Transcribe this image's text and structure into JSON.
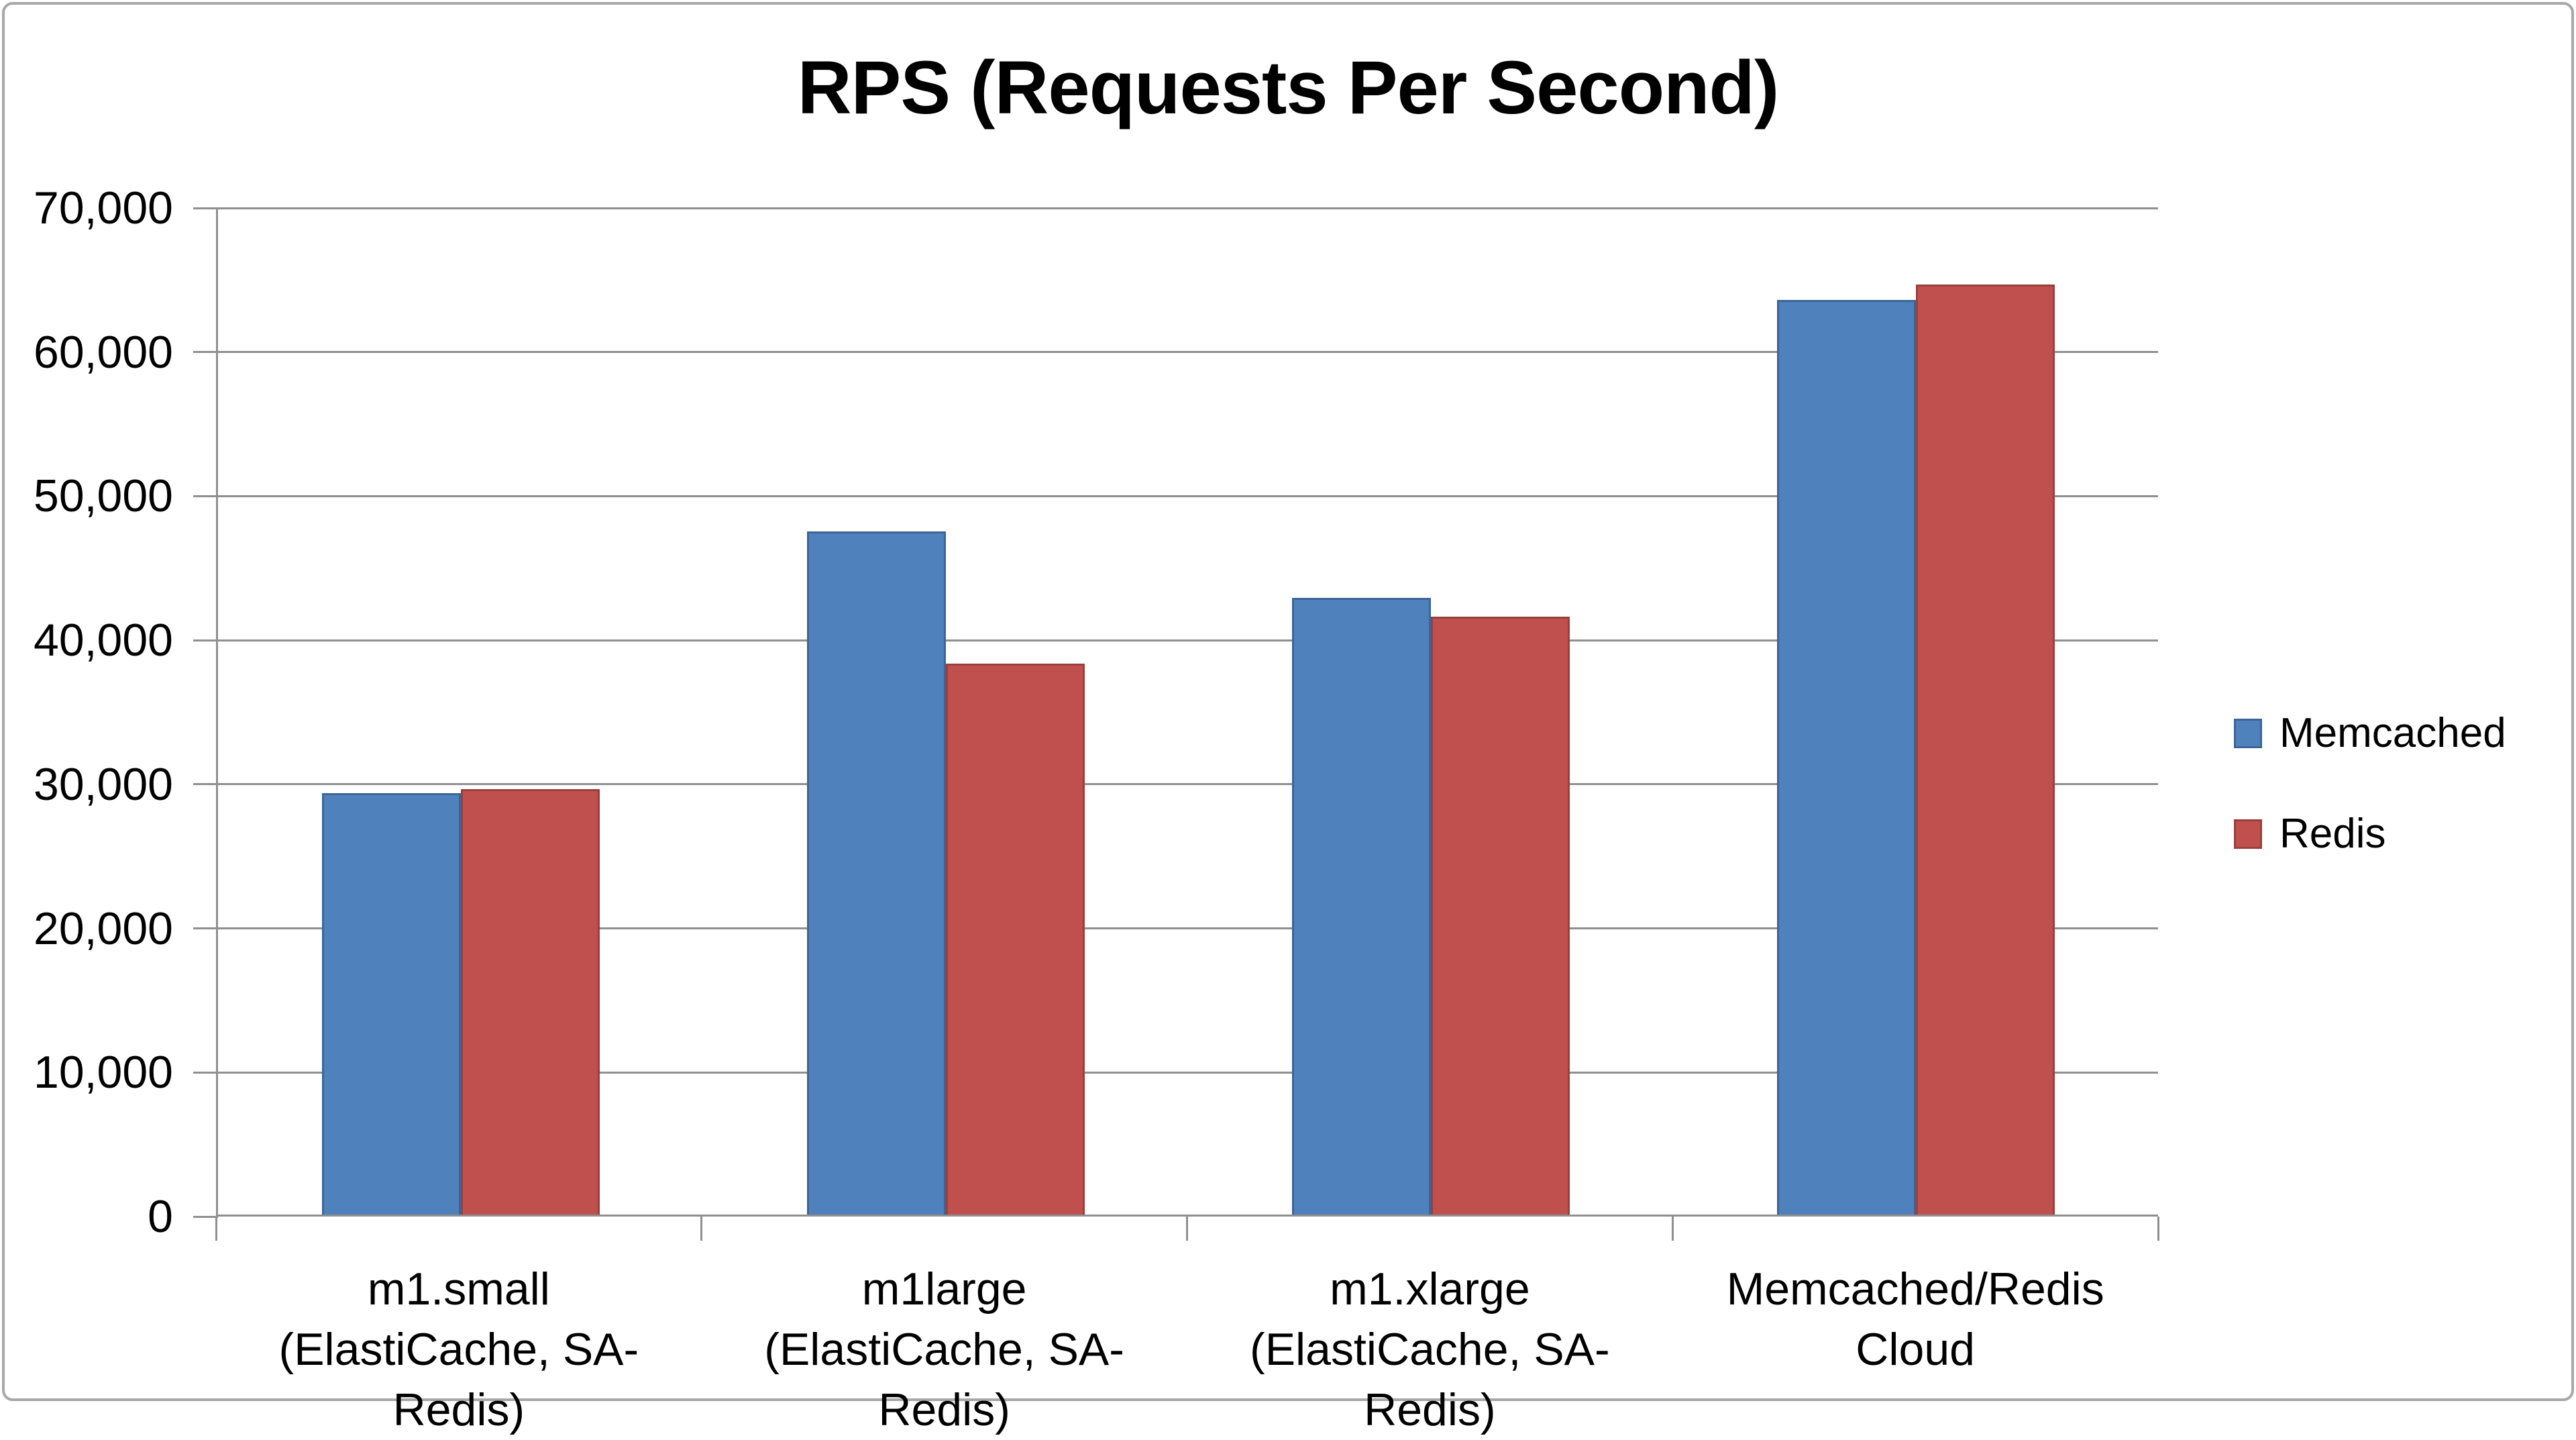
{
  "chart_data": {
    "type": "bar",
    "title": "RPS (Requests Per Second)",
    "categories": [
      {
        "line1": "m1.small",
        "line2": "(ElastiCache, SA-Redis)"
      },
      {
        "line1": "m1large",
        "line2": "(ElastiCache, SA-Redis)"
      },
      {
        "line1": "m1.xlarge",
        "line2": "(ElastiCache, SA-Redis)"
      },
      {
        "line1": "Memcached/Redis",
        "line2": "Cloud"
      }
    ],
    "series": [
      {
        "name": "Memcached",
        "color": "#4F81BD",
        "border_color": "#3B6596",
        "values": [
          29300,
          47500,
          42900,
          63600
        ]
      },
      {
        "name": "Redis",
        "color": "#C0504D",
        "border_color": "#9A3F3C",
        "values": [
          29600,
          38300,
          41600,
          64700
        ]
      }
    ],
    "xlabel": "",
    "ylabel": "",
    "ylim": [
      0,
      70000
    ],
    "ytick_interval": 10000,
    "ytick_labels": [
      "0",
      "10,000",
      "20,000",
      "30,000",
      "40,000",
      "50,000",
      "60,000",
      "70,000"
    ],
    "grid": true,
    "legend_position": "right"
  },
  "colors": {
    "background": "#FFFFFF",
    "grid_line": "#8F8F8F",
    "axis_line": "#8F8F8F",
    "text": "#000000",
    "frame_border": "#A8A8A8"
  }
}
